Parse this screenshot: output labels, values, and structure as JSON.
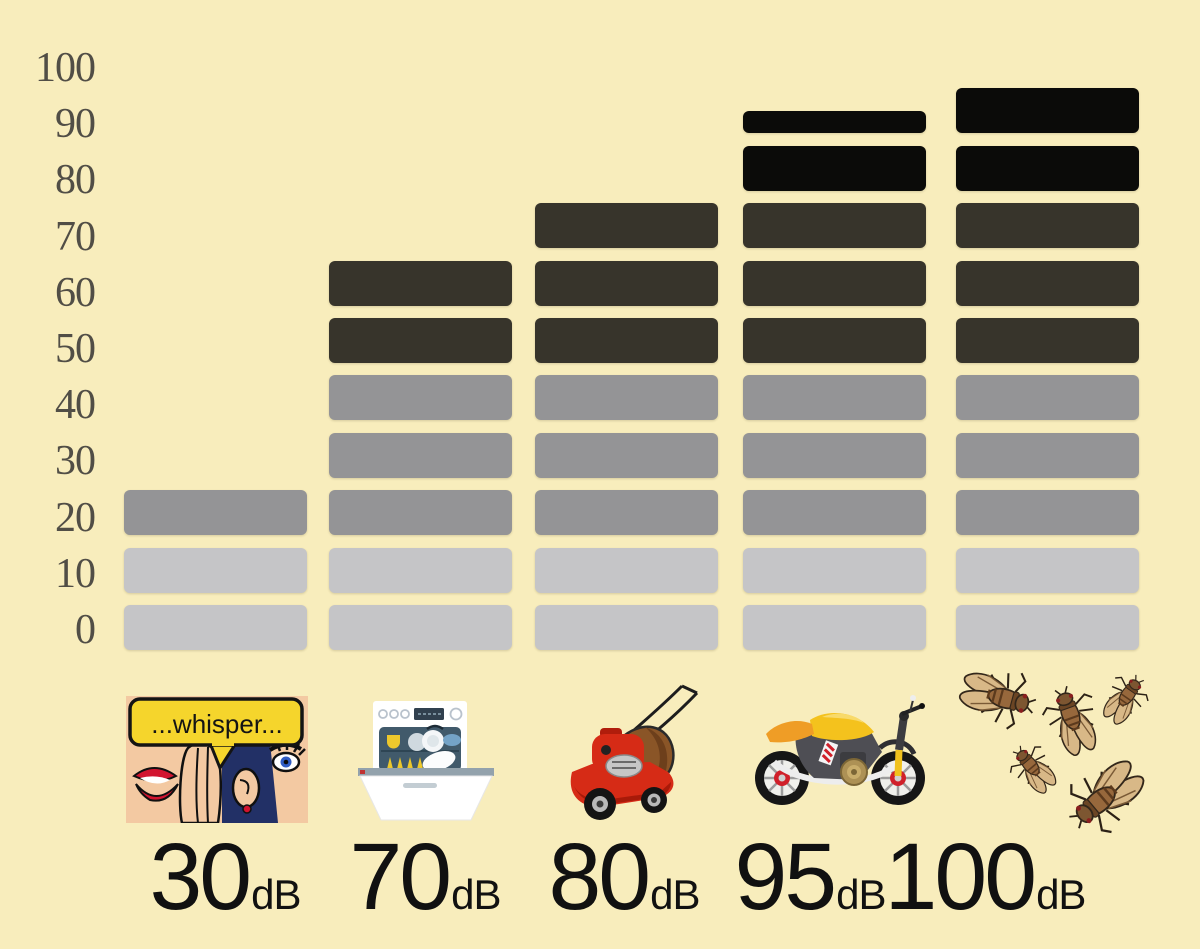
{
  "background_color": "#f8edbc",
  "chart_data": {
    "type": "bar",
    "subtype": "stacked-segment-equalizer",
    "title": "",
    "xlabel": "",
    "ylabel": "",
    "unit": "dB",
    "categories": [
      "whisper",
      "dishwasher",
      "lawn mower",
      "motorcycle",
      "cicadas"
    ],
    "values": [
      30,
      70,
      80,
      95,
      100
    ],
    "value_labels": [
      "30",
      "70",
      "80",
      "95",
      "100"
    ],
    "ylim": [
      0,
      100
    ],
    "yticks": [
      "100",
      "90",
      "80",
      "70",
      "60",
      "50",
      "40",
      "30",
      "20",
      "10",
      "0"
    ],
    "segment_step": 10,
    "band_colors": [
      {
        "range": [
          0,
          20
        ],
        "color": "#c5c5c7"
      },
      {
        "range": [
          20,
          50
        ],
        "color": "#949496"
      },
      {
        "range": [
          50,
          80
        ],
        "color": "#37342b"
      },
      {
        "range": [
          80,
          100
        ],
        "color": "#0b0b09"
      }
    ],
    "grid": false,
    "legend": false,
    "tick_color": "#514e46",
    "label_color": "#111111"
  },
  "columns": [
    {
      "icon": "whisper-icon",
      "label": "30",
      "unit": "dB",
      "speech_text": "...whisper..."
    },
    {
      "icon": "dishwasher-icon",
      "label": "70",
      "unit": "dB"
    },
    {
      "icon": "lawn-mower-icon",
      "label": "80",
      "unit": "dB"
    },
    {
      "icon": "motorcycle-icon",
      "label": "95",
      "unit": "dB"
    },
    {
      "icon": "cicadas-icon",
      "label": "100",
      "unit": "dB"
    }
  ]
}
